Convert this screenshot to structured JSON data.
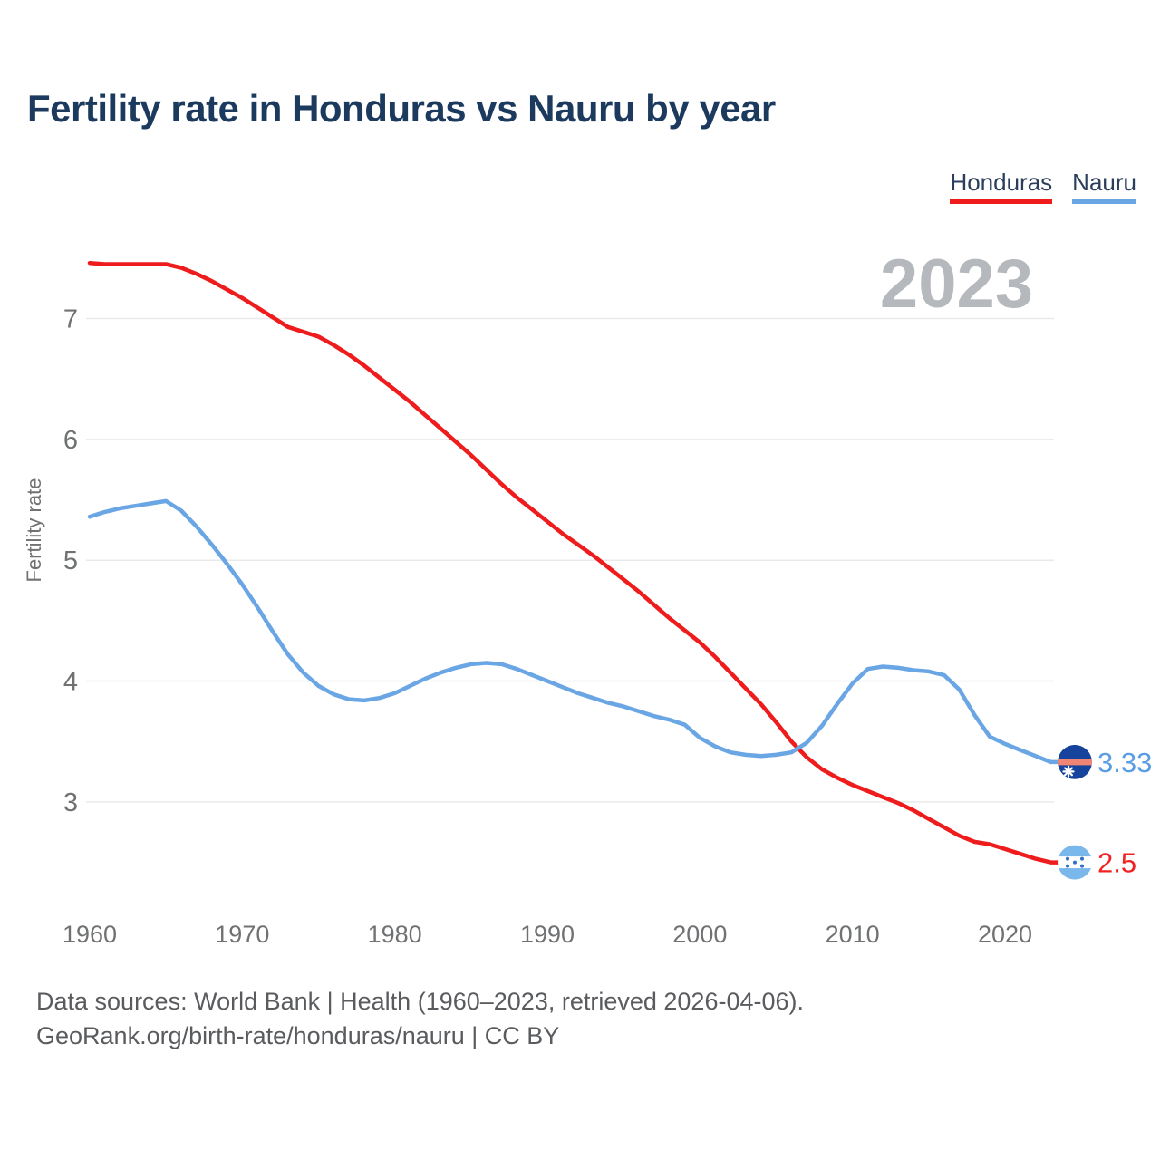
{
  "title": "Fertility rate in Honduras vs Nauru by year",
  "legend": {
    "items": [
      {
        "label": "Honduras",
        "color": "#ee1c1c"
      },
      {
        "label": "Nauru",
        "color": "#6aa6e4"
      }
    ]
  },
  "watermark": "2023",
  "footer": {
    "line1": "Data sources: World Bank | Health (1960–2023, retrieved 2026-04-06).",
    "line2": "GeoRank.org/birth-rate/honduras/nauru | CC BY"
  },
  "chart_data": {
    "type": "line",
    "title": "Fertility rate in Honduras vs Nauru by year",
    "xlabel": "",
    "ylabel": "Fertility rate",
    "x_ticks": [
      1960,
      1970,
      1980,
      1990,
      2000,
      2010,
      2020
    ],
    "y_ticks": [
      7,
      6,
      5,
      4,
      3
    ],
    "xlim": [
      1960,
      2023
    ],
    "ylim": [
      2.3,
      7.6
    ],
    "grid": "horizontal",
    "legend_position": "top-right",
    "annotation": "2023",
    "years": [
      1960,
      1961,
      1962,
      1963,
      1964,
      1965,
      1966,
      1967,
      1968,
      1969,
      1970,
      1971,
      1972,
      1973,
      1974,
      1975,
      1976,
      1977,
      1978,
      1979,
      1980,
      1981,
      1982,
      1983,
      1984,
      1985,
      1986,
      1987,
      1988,
      1989,
      1990,
      1991,
      1992,
      1993,
      1994,
      1995,
      1996,
      1997,
      1998,
      1999,
      2000,
      2001,
      2002,
      2003,
      2004,
      2005,
      2006,
      2007,
      2008,
      2009,
      2010,
      2011,
      2012,
      2013,
      2014,
      2015,
      2016,
      2017,
      2018,
      2019,
      2020,
      2021,
      2022,
      2023
    ],
    "series": [
      {
        "name": "Honduras",
        "color": "#ee1c1c",
        "label_color": "#f32222",
        "end_label": "2.5",
        "flag": "honduras",
        "values": [
          7.46,
          7.45,
          7.45,
          7.45,
          7.45,
          7.45,
          7.42,
          7.37,
          7.31,
          7.24,
          7.17,
          7.09,
          7.01,
          6.93,
          6.89,
          6.85,
          6.78,
          6.7,
          6.61,
          6.51,
          6.41,
          6.31,
          6.2,
          6.09,
          5.98,
          5.87,
          5.75,
          5.63,
          5.52,
          5.42,
          5.32,
          5.22,
          5.13,
          5.04,
          4.94,
          4.84,
          4.74,
          4.63,
          4.52,
          4.42,
          4.32,
          4.2,
          4.07,
          3.94,
          3.81,
          3.66,
          3.5,
          3.37,
          3.27,
          3.2,
          3.14,
          3.09,
          3.04,
          2.99,
          2.93,
          2.86,
          2.79,
          2.72,
          2.67,
          2.65,
          2.61,
          2.57,
          2.53,
          2.5
        ]
      },
      {
        "name": "Nauru",
        "color": "#6aa6e4",
        "label_color": "#5a9de2",
        "end_label": "3.33",
        "flag": "nauru",
        "values": [
          5.36,
          5.4,
          5.43,
          5.45,
          5.47,
          5.49,
          5.41,
          5.28,
          5.13,
          4.97,
          4.8,
          4.61,
          4.41,
          4.22,
          4.07,
          3.96,
          3.89,
          3.85,
          3.84,
          3.86,
          3.9,
          3.96,
          4.02,
          4.07,
          4.11,
          4.14,
          4.15,
          4.14,
          4.1,
          4.05,
          4.0,
          3.95,
          3.9,
          3.86,
          3.82,
          3.79,
          3.75,
          3.71,
          3.68,
          3.64,
          3.53,
          3.46,
          3.41,
          3.39,
          3.38,
          3.39,
          3.41,
          3.49,
          3.63,
          3.81,
          3.98,
          4.1,
          4.12,
          4.11,
          4.09,
          4.08,
          4.05,
          3.93,
          3.72,
          3.54,
          3.48,
          3.43,
          3.38,
          3.33
        ]
      }
    ],
    "flag_colors": {
      "nauru_field": "#16439c",
      "nauru_stripe": "#f08575",
      "nauru_star": "#ffffff",
      "honduras_band": "#7ab8ec",
      "honduras_star": "#2f6fc4"
    }
  },
  "axis_style": {
    "grid_color": "#e9e9e9",
    "tick_color": "#6f7173",
    "watermark_color": "#b5b8bc"
  }
}
